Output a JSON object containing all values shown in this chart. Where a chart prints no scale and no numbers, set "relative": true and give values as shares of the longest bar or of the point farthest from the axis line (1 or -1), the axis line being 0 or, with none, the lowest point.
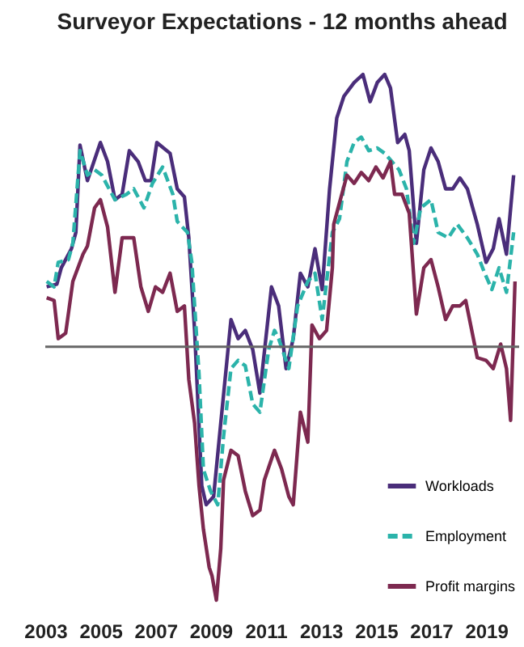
{
  "chart_data": {
    "type": "line",
    "title": "Surveyor Expectations - 12 months ahead",
    "relative": true,
    "xlim": [
      2003,
      2020.2
    ],
    "xticks": [
      2003,
      2005,
      2007,
      2009,
      2011,
      2013,
      2015,
      2017,
      2019
    ],
    "legend": "bottom right",
    "grid": false,
    "ref_lines": [
      {
        "axis": "y",
        "value": 0,
        "color": "#666666"
      }
    ],
    "series": [
      {
        "name": "Workloads",
        "color": "#4a2d7a",
        "line_style": "solid",
        "x": [
          2003.05,
          2003.42,
          2003.58,
          2003.95,
          2004.11,
          2004.26,
          2004.53,
          2005.0,
          2005.26,
          2005.53,
          2005.79,
          2006.05,
          2006.37,
          2006.63,
          2006.84,
          2007.05,
          2007.53,
          2007.79,
          2008.05,
          2008.21,
          2008.42,
          2008.68,
          2008.84,
          2009.11,
          2009.37,
          2009.74,
          2010.0,
          2010.26,
          2010.53,
          2010.79,
          2011.21,
          2011.47,
          2011.74,
          2012.0,
          2012.26,
          2012.53,
          2012.79,
          2013.05,
          2013.32,
          2013.58,
          2013.84,
          2014.21,
          2014.53,
          2014.79,
          2015.05,
          2015.32,
          2015.53,
          2015.79,
          2016.05,
          2016.21,
          2016.47,
          2016.74,
          2017.0,
          2017.26,
          2017.53,
          2017.79,
          2018.05,
          2018.32,
          2018.68,
          2019.0,
          2019.26,
          2019.47,
          2019.74,
          2020.0
        ],
        "values": [
          0.22,
          0.23,
          0.29,
          0.36,
          0.42,
          0.74,
          0.61,
          0.75,
          0.68,
          0.54,
          0.56,
          0.72,
          0.68,
          0.61,
          0.61,
          0.75,
          0.71,
          0.58,
          0.55,
          0.4,
          0.06,
          -0.51,
          -0.58,
          -0.55,
          -0.28,
          0.1,
          0.03,
          0.06,
          -0.01,
          -0.17,
          0.22,
          0.15,
          -0.08,
          0.03,
          0.27,
          0.22,
          0.36,
          0.21,
          0.58,
          0.84,
          0.92,
          0.97,
          1.0,
          0.9,
          0.97,
          1.0,
          0.95,
          0.75,
          0.78,
          0.72,
          0.38,
          0.65,
          0.73,
          0.68,
          0.58,
          0.58,
          0.62,
          0.58,
          0.45,
          0.31,
          0.36,
          0.47,
          0.34,
          0.63
        ]
      },
      {
        "name": "Employment",
        "color": "#2bb3aa",
        "line_style": "dashed",
        "x": [
          2003.05,
          2003.32,
          2003.47,
          2003.84,
          2004.0,
          2004.26,
          2004.53,
          2004.79,
          2005.05,
          2005.53,
          2005.95,
          2006.21,
          2006.58,
          2006.89,
          2007.26,
          2007.63,
          2007.79,
          2008.16,
          2008.32,
          2008.58,
          2008.74,
          2009.0,
          2009.26,
          2009.47,
          2009.74,
          2010.0,
          2010.26,
          2010.53,
          2010.79,
          2011.11,
          2011.32,
          2011.47,
          2011.84,
          2012.16,
          2012.53,
          2012.79,
          2013.05,
          2013.42,
          2013.68,
          2013.95,
          2014.21,
          2014.47,
          2014.74,
          2015.05,
          2015.32,
          2015.58,
          2015.84,
          2016.11,
          2016.37,
          2016.63,
          2017.0,
          2017.26,
          2017.63,
          2017.95,
          2018.32,
          2018.68,
          2018.95,
          2019.21,
          2019.47,
          2019.74,
          2020.0
        ],
        "values": [
          0.24,
          0.22,
          0.31,
          0.32,
          0.38,
          0.72,
          0.63,
          0.65,
          0.63,
          0.54,
          0.56,
          0.58,
          0.51,
          0.6,
          0.66,
          0.56,
          0.46,
          0.42,
          0.31,
          -0.1,
          -0.45,
          -0.53,
          -0.58,
          -0.33,
          -0.08,
          -0.05,
          -0.07,
          -0.21,
          -0.24,
          -0.01,
          0.06,
          0.03,
          -0.08,
          0.15,
          0.24,
          0.27,
          0.1,
          0.42,
          0.47,
          0.68,
          0.75,
          0.77,
          0.72,
          0.73,
          0.71,
          0.68,
          0.65,
          0.58,
          0.38,
          0.51,
          0.54,
          0.42,
          0.4,
          0.45,
          0.4,
          0.34,
          0.27,
          0.21,
          0.29,
          0.2,
          0.42
        ]
      },
      {
        "name": "Profit margins",
        "color": "#7d2950",
        "line_style": "solid",
        "x": [
          2003.05,
          2003.32,
          2003.47,
          2003.74,
          2004.0,
          2004.37,
          2004.53,
          2004.79,
          2005.0,
          2005.26,
          2005.53,
          2005.79,
          2006.21,
          2006.47,
          2006.74,
          2007.0,
          2007.26,
          2007.53,
          2007.79,
          2008.05,
          2008.21,
          2008.42,
          2008.58,
          2008.74,
          2008.95,
          2009.05,
          2009.21,
          2009.37,
          2009.47,
          2009.74,
          2010.0,
          2010.26,
          2010.53,
          2010.79,
          2010.95,
          2011.32,
          2011.58,
          2011.84,
          2012.0,
          2012.26,
          2012.53,
          2012.68,
          2012.95,
          2013.21,
          2013.42,
          2013.47,
          2013.95,
          2014.21,
          2014.47,
          2014.74,
          2015.0,
          2015.26,
          2015.53,
          2015.68,
          2015.95,
          2016.21,
          2016.47,
          2016.74,
          2017.0,
          2017.26,
          2017.53,
          2017.79,
          2018.05,
          2018.26,
          2018.68,
          2019.0,
          2019.26,
          2019.53,
          2019.74,
          2019.89,
          2020.05
        ],
        "values": [
          0.18,
          0.17,
          0.03,
          0.05,
          0.24,
          0.34,
          0.37,
          0.51,
          0.54,
          0.44,
          0.2,
          0.4,
          0.4,
          0.22,
          0.13,
          0.22,
          0.2,
          0.27,
          0.13,
          0.15,
          -0.12,
          -0.28,
          -0.51,
          -0.67,
          -0.81,
          -0.84,
          -0.93,
          -0.74,
          -0.49,
          -0.38,
          -0.4,
          -0.53,
          -0.62,
          -0.6,
          -0.49,
          -0.38,
          -0.45,
          -0.55,
          -0.58,
          -0.24,
          -0.35,
          0.08,
          0.03,
          0.06,
          0.29,
          0.45,
          0.63,
          0.6,
          0.64,
          0.61,
          0.66,
          0.62,
          0.68,
          0.56,
          0.56,
          0.49,
          0.12,
          0.29,
          0.32,
          0.22,
          0.1,
          0.15,
          0.15,
          0.17,
          -0.04,
          -0.05,
          -0.08,
          0.01,
          -0.08,
          -0.27,
          0.24
        ]
      }
    ]
  }
}
